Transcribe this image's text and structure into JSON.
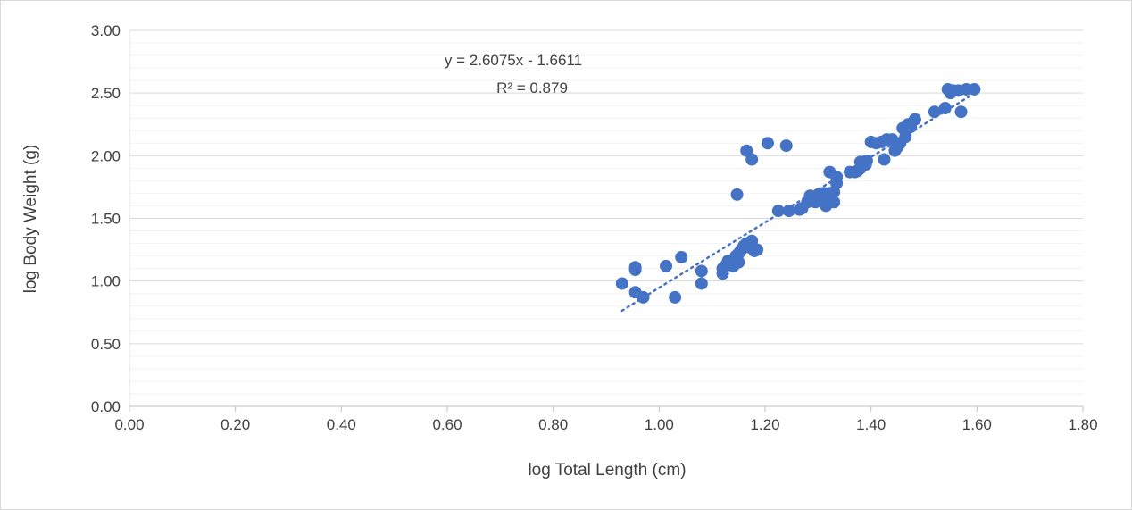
{
  "chart_data": {
    "type": "scatter",
    "xlabel": "log Total Length (cm)",
    "ylabel": "log Body Weight (g)",
    "xlim": [
      0,
      1.8
    ],
    "ylim": [
      0,
      3.0
    ],
    "x_ticks": [
      "0.00",
      "0.20",
      "0.40",
      "0.60",
      "0.80",
      "1.00",
      "1.20",
      "1.40",
      "1.60",
      "1.80"
    ],
    "y_ticks": [
      "0.00",
      "0.50",
      "1.00",
      "1.50",
      "2.00",
      "2.50",
      "3.00"
    ],
    "grid": "horizontal major and minor gridlines",
    "marker_color": "#4472c4",
    "trendline": {
      "type": "linear",
      "style": "dotted",
      "slope": 2.6075,
      "intercept": -1.6611,
      "x_range": [
        0.93,
        1.59
      ],
      "equation_label": "y = 2.6075x - 1.6611",
      "r2_label": "R² = 0.879"
    },
    "points": [
      [
        0.93,
        0.98
      ],
      [
        0.955,
        1.11
      ],
      [
        0.955,
        1.09
      ],
      [
        0.955,
        0.91
      ],
      [
        0.97,
        0.87
      ],
      [
        1.013,
        1.12
      ],
      [
        1.03,
        0.87
      ],
      [
        1.042,
        1.19
      ],
      [
        1.08,
        1.08
      ],
      [
        1.08,
        0.98
      ],
      [
        1.12,
        1.06
      ],
      [
        1.12,
        1.1
      ],
      [
        1.125,
        1.12
      ],
      [
        1.13,
        1.16
      ],
      [
        1.135,
        1.14
      ],
      [
        1.14,
        1.12
      ],
      [
        1.145,
        1.2
      ],
      [
        1.15,
        1.15
      ],
      [
        1.15,
        1.22
      ],
      [
        1.155,
        1.25
      ],
      [
        1.16,
        1.28
      ],
      [
        1.165,
        1.3
      ],
      [
        1.17,
        1.27
      ],
      [
        1.175,
        1.32
      ],
      [
        1.18,
        1.24
      ],
      [
        1.185,
        1.25
      ],
      [
        1.147,
        1.69
      ],
      [
        1.165,
        2.04
      ],
      [
        1.175,
        1.97
      ],
      [
        1.205,
        2.1
      ],
      [
        1.24,
        2.08
      ],
      [
        1.225,
        1.56
      ],
      [
        1.245,
        1.56
      ],
      [
        1.265,
        1.57
      ],
      [
        1.27,
        1.58
      ],
      [
        1.28,
        1.63
      ],
      [
        1.285,
        1.68
      ],
      [
        1.29,
        1.66
      ],
      [
        1.295,
        1.63
      ],
      [
        1.3,
        1.69
      ],
      [
        1.305,
        1.64
      ],
      [
        1.31,
        1.7
      ],
      [
        1.315,
        1.6
      ],
      [
        1.315,
        1.67
      ],
      [
        1.32,
        1.7
      ],
      [
        1.325,
        1.65
      ],
      [
        1.33,
        1.63
      ],
      [
        1.33,
        1.71
      ],
      [
        1.322,
        1.87
      ],
      [
        1.335,
        1.78
      ],
      [
        1.335,
        1.83
      ],
      [
        1.36,
        1.87
      ],
      [
        1.37,
        1.87
      ],
      [
        1.375,
        1.88
      ],
      [
        1.38,
        1.95
      ],
      [
        1.38,
        1.9
      ],
      [
        1.385,
        1.92
      ],
      [
        1.39,
        1.93
      ],
      [
        1.392,
        1.96
      ],
      [
        1.4,
        2.11
      ],
      [
        1.41,
        2.1
      ],
      [
        1.42,
        2.11
      ],
      [
        1.425,
        1.97
      ],
      [
        1.43,
        2.13
      ],
      [
        1.44,
        2.13
      ],
      [
        1.445,
        2.04
      ],
      [
        1.45,
        2.07
      ],
      [
        1.455,
        2.1
      ],
      [
        1.46,
        2.22
      ],
      [
        1.465,
        2.15
      ],
      [
        1.47,
        2.25
      ],
      [
        1.475,
        2.23
      ],
      [
        1.483,
        2.29
      ],
      [
        1.52,
        2.35
      ],
      [
        1.54,
        2.38
      ],
      [
        1.545,
        2.53
      ],
      [
        1.55,
        2.5
      ],
      [
        1.555,
        2.52
      ],
      [
        1.565,
        2.52
      ],
      [
        1.57,
        2.35
      ],
      [
        1.58,
        2.53
      ],
      [
        1.595,
        2.53
      ]
    ]
  }
}
